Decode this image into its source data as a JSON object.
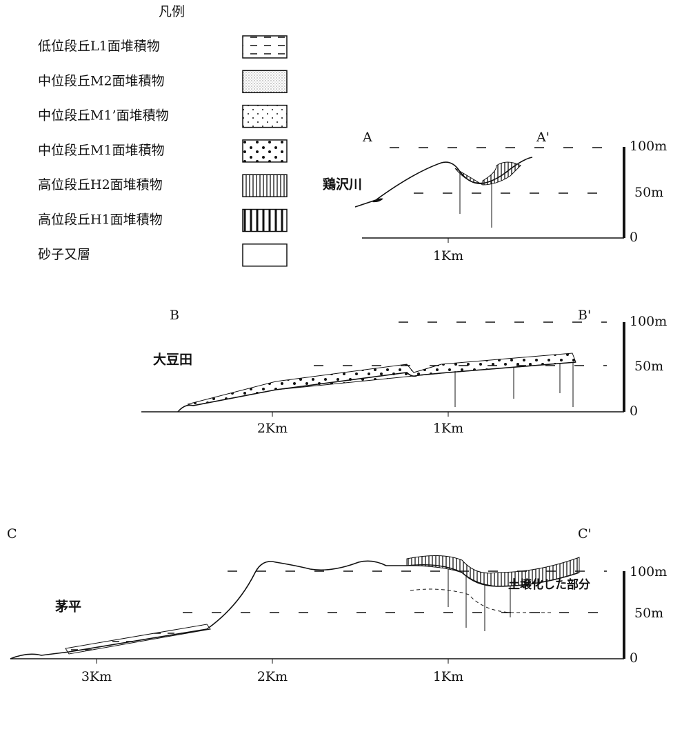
{
  "legend": {
    "title": "凡例",
    "items": [
      {
        "label": "低位段丘L1面堆積物"
      },
      {
        "label": "中位段丘M2面堆積物"
      },
      {
        "label": "中位段丘M1’面堆積物"
      },
      {
        "label": "中位段丘M1面堆積物"
      },
      {
        "label": "高位段丘H2面堆積物"
      },
      {
        "label": "高位段丘H1面堆積物"
      },
      {
        "label": "砂子又層"
      }
    ]
  },
  "sections": [
    {
      "left_label": "A",
      "right_label": "A'",
      "place_name": "鶏沢川",
      "scale": [
        "100m",
        "50m",
        "0"
      ],
      "distances": [
        "1Km"
      ]
    },
    {
      "left_label": "B",
      "right_label": "B'",
      "place_name": "大豆田",
      "scale": [
        "100m",
        "50m",
        "0"
      ],
      "distances": [
        "2Km",
        "1Km"
      ]
    },
    {
      "left_label": "C",
      "right_label": "C'",
      "place_name": "茅平",
      "scale": [
        "100m",
        "50m",
        "0"
      ],
      "distances": [
        "3Km",
        "2Km",
        "1Km"
      ],
      "note": "土壌化した部分"
    }
  ]
}
